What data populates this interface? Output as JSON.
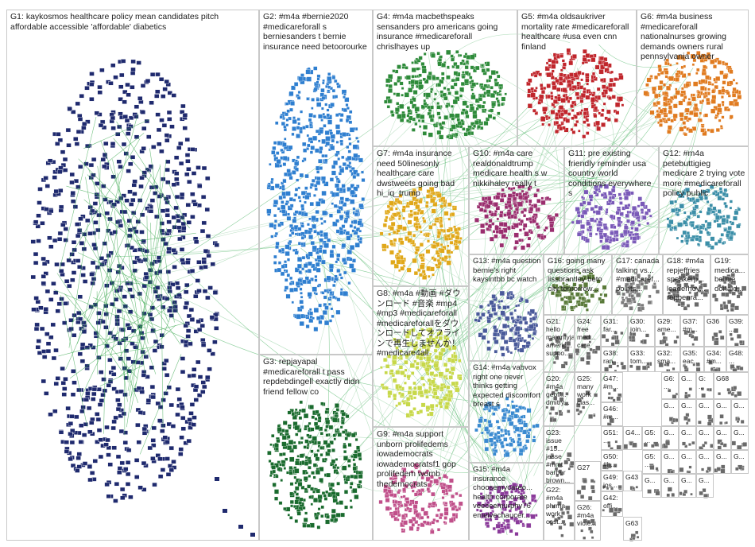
{
  "groups": [
    {
      "id": "G1",
      "label": "G1: kaykosmos healthcare policy mean candidates pitch affordable accessible 'affordable' diabetics",
      "color": "#1f2a6e"
    },
    {
      "id": "G2",
      "label": "G2: #m4a #bernie2020 #medicareforall s berniesanders t bernie insurance need betoorourke",
      "color": "#2f7fd0"
    },
    {
      "id": "G3",
      "label": "G3: repjayapal #medicareforall t pass repdebdingell exactly didn friend fellow co",
      "color": "#1a6b2e"
    },
    {
      "id": "G4",
      "label": "G4: #m4a macbethspeaks sensanders pro americans going insurance #medicareforall chrislhayes up",
      "color": "#2e8b3a"
    },
    {
      "id": "G5",
      "label": "G5: #m4a oldsaukriver mortality rate #medicareforall healthcare #usa even cnn finland",
      "color": "#c0262c"
    },
    {
      "id": "G6",
      "label": "G6: #m4a business #medicareforall nationalnurses growing demands owners rural pennsylvania owner",
      "color": "#e07b20"
    },
    {
      "id": "G7",
      "label": "G7: #m4a insurance need 50linesonly healthcare care dwstweets going bad hi_iq_trump",
      "color": "#e0a81a"
    },
    {
      "id": "G8",
      "label": "G8: #m4a #動画 #ダウンロード #音楽 #mp4 #mp3 #medicareforall #medicareforallをダウンロードしてオフラインで再生しませんか！ #medicare4all",
      "color": "#c7d84a"
    },
    {
      "id": "G9",
      "label": "G9: #m4a support unborn prolifedems iowademocrats iowademocratsf1 gop prolifedem womb thedemocrats",
      "color": "#c0508a"
    },
    {
      "id": "G10",
      "label": "G10: #m4a care realdonaldtrump medicare health s w nikkihaley really t",
      "color": "#9a2e6e"
    },
    {
      "id": "G11",
      "label": "G11: pre existing friendly reminder usa country world conditions everywhere s",
      "color": "#7a5ab8"
    },
    {
      "id": "G12",
      "label": "G12: #m4a petebuttigieg medicare 2 trying vote more #medicareforall policy public",
      "color": "#3c8fa8"
    },
    {
      "id": "G13",
      "label": "G13: #m4a question bernie's right kaysintbb bc watch",
      "color": "#4a5a9a"
    },
    {
      "id": "G14",
      "label": "G14: #m4a vabvox right one never thinks getting expected discomfort breast s",
      "color": "#3a8ad0"
    },
    {
      "id": "G15",
      "label": "G15: #m4a insurance choosemycareo... health corporate veeceemurphy76 emelyechaucer...",
      "color": "#8a3a9a"
    },
    {
      "id": "G16",
      "label": "G16: going many questions ask lissbrantley beto city tomorrow...",
      "color": "#5a7a3a"
    },
    {
      "id": "G17",
      "label": "G17: canada talking vs... #medicaref... points...",
      "color": "#7a7a7a"
    },
    {
      "id": "G18",
      "label": "G18: #m4a repjeffries speakerp... leaderhoy... repbenra...",
      "color": "#6a6a6a"
    },
    {
      "id": "G19",
      "label": "G19: medica... bernie donald...",
      "color": "#6a6a6a"
    },
    {
      "id": "G20",
      "label": "G20: #m4a geoff... dmitry...",
      "color": "#6a6a6a"
    },
    {
      "id": "G21",
      "label": "G21: hello majorityjam... americ... suppo...",
      "color": "#6a6a6a"
    },
    {
      "id": "G22",
      "label": "G22: #m4a phrma work cost...",
      "color": "#6a6a6a"
    },
    {
      "id": "G23",
      "label": "G23: issue #15... jesse #mmt barber brown...",
      "color": "#6a6a6a"
    },
    {
      "id": "G24",
      "label": "G24: free med... care",
      "color": "#6a6a6a"
    },
    {
      "id": "G25",
      "label": "G25: many work clas...",
      "color": "#6a6a6a"
    },
    {
      "id": "G26",
      "label": "G26: #m4a viole...",
      "color": "#6a6a6a"
    },
    {
      "id": "G27",
      "label": "G27",
      "color": "#6a6a6a"
    },
    {
      "id": "G29",
      "label": "G29: ame...",
      "color": "#6a6a6a"
    },
    {
      "id": "G30",
      "label": "G30: join...",
      "color": "#6a6a6a"
    },
    {
      "id": "G31",
      "label": "G31: far...",
      "color": "#6a6a6a"
    },
    {
      "id": "G32",
      "label": "G32: sma...",
      "color": "#6a6a6a"
    },
    {
      "id": "G33",
      "label": "G33: tom...",
      "color": "#6a6a6a"
    },
    {
      "id": "G34",
      "label": "G34: #m...",
      "color": "#6a6a6a"
    },
    {
      "id": "G35",
      "label": "G35: eac...",
      "color": "#6a6a6a"
    },
    {
      "id": "G36",
      "label": "G36",
      "color": "#6a6a6a"
    },
    {
      "id": "G37",
      "label": "G37: #m...",
      "color": "#6a6a6a"
    },
    {
      "id": "G38",
      "label": "G38: ran...",
      "color": "#6a6a6a"
    },
    {
      "id": "G39",
      "label": "G39: ...",
      "color": "#6a6a6a"
    },
    {
      "id": "G41",
      "label": "G4...",
      "color": "#6a6a6a"
    },
    {
      "id": "G42",
      "label": "G42: offi...",
      "color": "#6a6a6a"
    },
    {
      "id": "G43",
      "label": "G43",
      "color": "#6a6a6a"
    },
    {
      "id": "G46",
      "label": "G46: #m...",
      "color": "#6a6a6a"
    },
    {
      "id": "G47",
      "label": "G47: #m...",
      "color": "#6a6a6a"
    },
    {
      "id": "G48",
      "label": "G48: ...",
      "color": "#6a6a6a"
    },
    {
      "id": "G49",
      "label": "G49: jos...",
      "color": "#6a6a6a"
    },
    {
      "id": "G50",
      "label": "G50: #h...",
      "color": "#6a6a6a"
    },
    {
      "id": "G51",
      "label": "G51: ...",
      "color": "#6a6a6a"
    },
    {
      "id": "G63",
      "label": "G63",
      "color": "#6a6a6a"
    },
    {
      "id": "G68",
      "label": "G68",
      "color": "#6a6a6a"
    }
  ],
  "tiles": [
    {
      "label": "G5: ...",
      "color": "#6a6a6a"
    },
    {
      "label": "G5: ...",
      "color": "#6a6a6a"
    },
    {
      "label": "G6: ...",
      "color": "#6a6a6a"
    },
    {
      "label": "G...",
      "color": "#6a6a6a"
    },
    {
      "label": "G: ...",
      "color": "#6a6a6a"
    },
    {
      "label": "G...",
      "color": "#6a6a6a"
    },
    {
      "label": "G...",
      "color": "#6a6a6a"
    },
    {
      "label": "G...",
      "color": "#6a6a6a"
    },
    {
      "label": "G...",
      "color": "#6a6a6a"
    },
    {
      "label": "G...",
      "color": "#6a6a6a"
    },
    {
      "label": "G...",
      "color": "#6a6a6a"
    },
    {
      "label": "G...",
      "color": "#6a6a6a"
    },
    {
      "label": "G...",
      "color": "#6a6a6a"
    },
    {
      "label": "G...",
      "color": "#6a6a6a"
    },
    {
      "label": "G...",
      "color": "#6a6a6a"
    },
    {
      "label": "G...",
      "color": "#6a6a6a"
    },
    {
      "label": "G...",
      "color": "#6a6a6a"
    },
    {
      "label": "G...",
      "color": "#6a6a6a"
    },
    {
      "label": "G...",
      "color": "#6a6a6a"
    },
    {
      "label": "G...",
      "color": "#6a6a6a"
    },
    {
      "label": "G...",
      "color": "#6a6a6a"
    },
    {
      "label": "G...",
      "color": "#6a6a6a"
    },
    {
      "label": "G...",
      "color": "#6a6a6a"
    },
    {
      "label": "G...",
      "color": "#6a6a6a"
    }
  ],
  "edge_colors": [
    "#2ea84a",
    "#7fc98f",
    "#9ad0a6"
  ]
}
